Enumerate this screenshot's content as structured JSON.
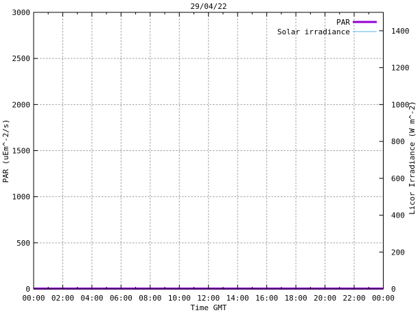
{
  "window": {
    "background": "#ffffff"
  },
  "chart_data": {
    "type": "line",
    "title": "29/04/22",
    "xlabel": "Time GMT",
    "ylabel": "PAR (uEm^-2/s)",
    "y2label": "Licor Irradiance (W m^-2)",
    "x_tick_labels": [
      "00:00",
      "02:00",
      "04:00",
      "06:00",
      "08:00",
      "10:00",
      "12:00",
      "14:00",
      "16:00",
      "18:00",
      "20:00",
      "22:00",
      "00:00"
    ],
    "x_range_hours": [
      0,
      24
    ],
    "x_major_step_hours": 2,
    "x_minor_step_hours": 1,
    "y_ticks": [
      0,
      500,
      1000,
      1500,
      2000,
      2500,
      3000
    ],
    "ylim": [
      0,
      3000
    ],
    "y2_ticks": [
      0,
      200,
      400,
      600,
      800,
      1000,
      1200,
      1400
    ],
    "y2lim": [
      0,
      1500
    ],
    "grid": true,
    "grid_style": "dotted",
    "legend_position": "top-right-inside",
    "colors": {
      "border": "#000000",
      "grid": "#a0a0a0",
      "text": "#000000",
      "par_line": "#9400d3",
      "solar_line": "#56b4e9"
    },
    "series": [
      {
        "name": "PAR",
        "axis": "y",
        "color": "#9400d3",
        "line_width": 3,
        "x_hours": [
          0,
          24
        ],
        "values": [
          0,
          0
        ]
      },
      {
        "name": "Solar irradiance",
        "axis": "y2",
        "color": "#56b4e9",
        "line_width": 1,
        "x_hours": [
          0,
          24
        ],
        "values": [
          0,
          0
        ]
      }
    ]
  }
}
